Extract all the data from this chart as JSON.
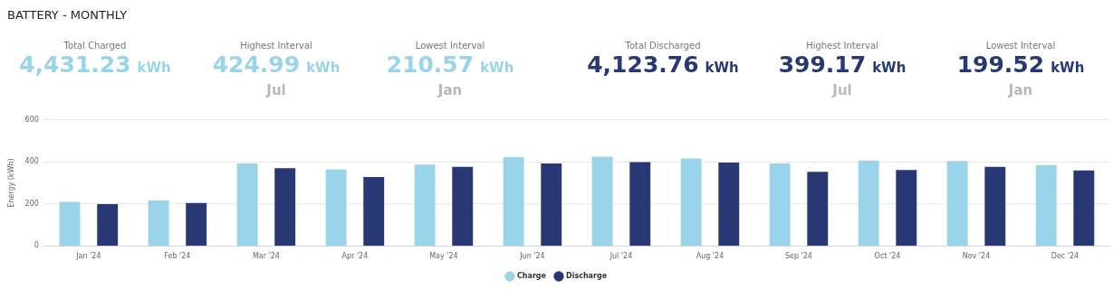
{
  "chart_data": [
    {
      "type": "other",
      "title": "Total Charged",
      "color": "#9ad4ea",
      "annotations": [
        "4,431.23",
        "kWh"
      ]
    },
    {
      "type": "other",
      "title": "Highest Interval",
      "color": "#9ad4ea",
      "annotations": [
        "424.99",
        "kWh",
        "Jul"
      ]
    },
    {
      "type": "other",
      "title": "Lowest Interval",
      "color": "#9ad4ea",
      "annotations": [
        "210.57",
        "kWh",
        "Jan"
      ]
    },
    {
      "type": "other",
      "title": "Total Discharged",
      "color": "#283874",
      "annotations": [
        "4,123.76",
        "kWh"
      ]
    },
    {
      "type": "other",
      "title": "Highest Interval",
      "color": "#283874",
      "annotations": [
        "399.17",
        "kWh",
        "Jul"
      ]
    },
    {
      "type": "other",
      "title": "Lowest Interval",
      "color": "#283874",
      "annotations": [
        "199.52",
        "kWh",
        "Jan"
      ]
    },
    {
      "type": "bar",
      "title": "BATTERY - MONTHLY",
      "ylabel": "Energy (kWh)",
      "categories": [
        "Jan '24",
        "Feb '24",
        "Mar '24",
        "Apr '24",
        "May '24",
        "Jun '24",
        "Jul '24",
        "Aug '24",
        "Sep '24",
        "Oct '24",
        "Nov '24",
        "Dec '24"
      ],
      "ylim": [
        0,
        600
      ],
      "yticks": [
        0,
        200,
        400,
        600
      ],
      "grid": "y",
      "legend": "bottom",
      "series": [
        {
          "name": "Charge",
          "color": "#9ad4ea",
          "values": [
            210.57,
            217,
            393,
            365,
            388,
            423,
            424.99,
            417,
            393,
            407,
            405,
            385
          ]
        },
        {
          "name": "Discharge",
          "color": "#283874",
          "values": [
            199.52,
            205,
            370,
            328,
            377,
            393,
            399.17,
            397,
            353,
            362,
            377,
            360
          ]
        }
      ]
    }
  ]
}
